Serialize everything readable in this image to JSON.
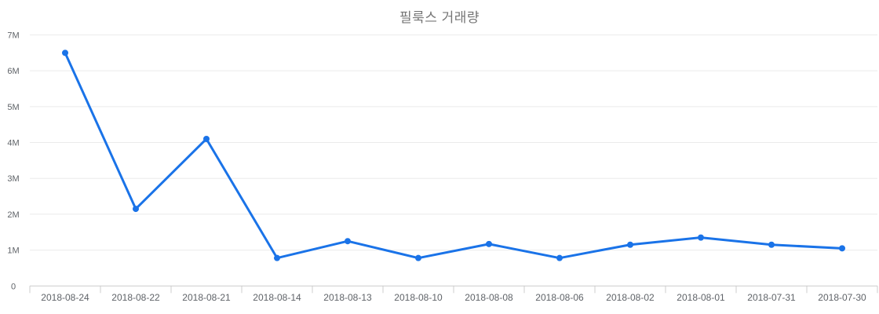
{
  "chart_data": {
    "type": "line",
    "title": "필룩스 거래량",
    "categories": [
      "2018-08-24",
      "2018-08-22",
      "2018-08-21",
      "2018-08-14",
      "2018-08-13",
      "2018-08-10",
      "2018-08-08",
      "2018-08-06",
      "2018-08-02",
      "2018-08-01",
      "2018-07-31",
      "2018-07-30"
    ],
    "series": [
      {
        "name": "거래량",
        "values_millions": [
          6.5,
          2.15,
          4.1,
          0.78,
          1.25,
          0.78,
          1.17,
          0.78,
          1.15,
          1.35,
          1.15,
          1.05
        ]
      }
    ],
    "xlabel": "",
    "ylabel": "",
    "ylim_millions": [
      0,
      7
    ],
    "y_tick_labels": [
      "0",
      "1M",
      "2M",
      "3M",
      "4M",
      "5M",
      "6M",
      "7M"
    ],
    "grid": "horizontal-on",
    "legend": "none",
    "colors": {
      "line": "#1a73e8",
      "point": "#1a73e8",
      "gridline": "#ebebeb",
      "axis_baseline": "#cccccc",
      "axis_tick": "#cccccc",
      "axis_label": "#5f6368",
      "title": "#757575",
      "background": "#ffffff"
    }
  }
}
